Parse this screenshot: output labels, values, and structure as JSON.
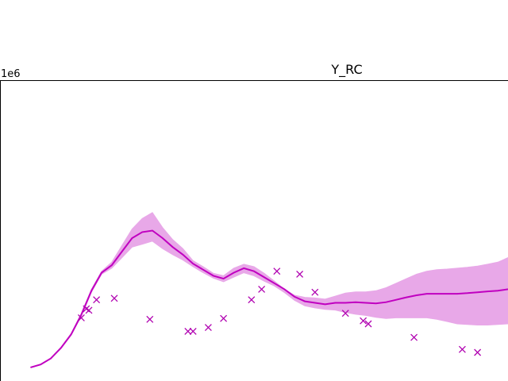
{
  "chart_data": {
    "type": "line",
    "title": "Y_RC",
    "y_offset_label": "1e6",
    "xlabel": "",
    "ylabel": "",
    "grid": false,
    "legend": "none",
    "colors": {
      "line": "#c000c0",
      "band": "#e8a8e8",
      "markers": "#b000b0"
    },
    "xlim": [
      0,
      100
    ],
    "ylim": [
      0,
      1.0
    ],
    "series": [
      {
        "kind": "mean-line",
        "x": [
          6,
          8,
          10,
          12,
          14,
          16,
          18,
          20,
          22,
          24,
          26,
          28,
          30,
          32,
          34,
          36,
          38,
          40,
          42,
          44,
          46,
          48,
          50,
          52,
          54,
          56,
          58,
          60,
          62,
          64,
          66,
          68,
          70,
          72,
          74,
          76,
          78,
          80,
          82,
          84,
          86,
          88,
          90,
          92,
          94,
          96,
          98,
          100
        ],
        "y": [
          0.045,
          0.055,
          0.075,
          0.11,
          0.155,
          0.22,
          0.3,
          0.36,
          0.385,
          0.43,
          0.475,
          0.495,
          0.5,
          0.475,
          0.445,
          0.42,
          0.39,
          0.37,
          0.35,
          0.34,
          0.36,
          0.375,
          0.365,
          0.345,
          0.325,
          0.305,
          0.28,
          0.265,
          0.26,
          0.255,
          0.26,
          0.26,
          0.262,
          0.26,
          0.258,
          0.262,
          0.27,
          0.278,
          0.285,
          0.29,
          0.29,
          0.29,
          0.29,
          0.292,
          0.295,
          0.298,
          0.3,
          0.305
        ]
      },
      {
        "kind": "band-upper",
        "y": [
          0.045,
          0.055,
          0.075,
          0.112,
          0.158,
          0.225,
          0.305,
          0.365,
          0.395,
          0.45,
          0.505,
          0.54,
          0.56,
          0.51,
          0.47,
          0.44,
          0.4,
          0.38,
          0.358,
          0.35,
          0.375,
          0.388,
          0.38,
          0.358,
          0.332,
          0.305,
          0.285,
          0.278,
          0.276,
          0.272,
          0.282,
          0.292,
          0.296,
          0.296,
          0.3,
          0.31,
          0.325,
          0.34,
          0.355,
          0.365,
          0.37,
          0.372,
          0.375,
          0.378,
          0.382,
          0.388,
          0.395,
          0.41
        ]
      },
      {
        "kind": "band-lower",
        "y": [
          0.045,
          0.055,
          0.075,
          0.108,
          0.152,
          0.215,
          0.295,
          0.355,
          0.375,
          0.41,
          0.445,
          0.455,
          0.465,
          0.44,
          0.42,
          0.402,
          0.38,
          0.36,
          0.342,
          0.33,
          0.345,
          0.36,
          0.35,
          0.332,
          0.316,
          0.294,
          0.268,
          0.25,
          0.243,
          0.238,
          0.236,
          0.228,
          0.222,
          0.218,
          0.212,
          0.208,
          0.21,
          0.21,
          0.21,
          0.21,
          0.205,
          0.198,
          0.19,
          0.188,
          0.186,
          0.186,
          0.188,
          0.19
        ]
      },
      {
        "kind": "observations",
        "x": [
          16,
          17,
          17.5,
          19,
          22.5,
          29.5,
          37,
          38,
          41,
          44,
          49.5,
          51.5,
          54.5,
          59,
          62,
          68,
          71.5,
          72.5,
          81.5,
          91,
          94
        ],
        "y": [
          0.21,
          0.24,
          0.235,
          0.27,
          0.275,
          0.205,
          0.165,
          0.165,
          0.178,
          0.208,
          0.27,
          0.305,
          0.365,
          0.355,
          0.295,
          0.225,
          0.2,
          0.19,
          0.145,
          0.105,
          0.095
        ]
      }
    ]
  }
}
